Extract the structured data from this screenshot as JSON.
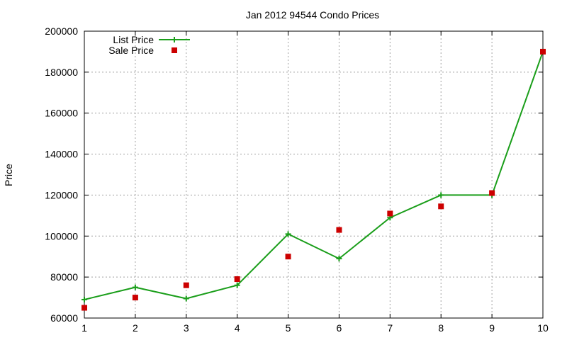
{
  "chart_data": {
    "type": "line",
    "title": "Jan 2012 94544 Condo Prices",
    "xlabel": "",
    "ylabel": "Price",
    "x": [
      1,
      2,
      3,
      4,
      5,
      6,
      7,
      8,
      9,
      10
    ],
    "xlim": [
      1,
      10
    ],
    "ylim": [
      60000,
      200000
    ],
    "yticks": [
      60000,
      80000,
      100000,
      120000,
      140000,
      160000,
      180000,
      200000
    ],
    "xticks": [
      1,
      2,
      3,
      4,
      5,
      6,
      7,
      8,
      9,
      10
    ],
    "grid": true,
    "legend_position": "top-left",
    "series": [
      {
        "name": "List Price",
        "style": "linespoints",
        "marker": "plus",
        "color": "#1a9e1a",
        "values": [
          69000,
          75000,
          69500,
          76000,
          101000,
          89000,
          109000,
          120000,
          120000,
          190000
        ]
      },
      {
        "name": "Sale Price",
        "style": "points",
        "marker": "square",
        "color": "#cc0000",
        "values": [
          65000,
          70000,
          76000,
          79000,
          90000,
          103000,
          111000,
          114500,
          121000,
          190000
        ]
      }
    ]
  }
}
